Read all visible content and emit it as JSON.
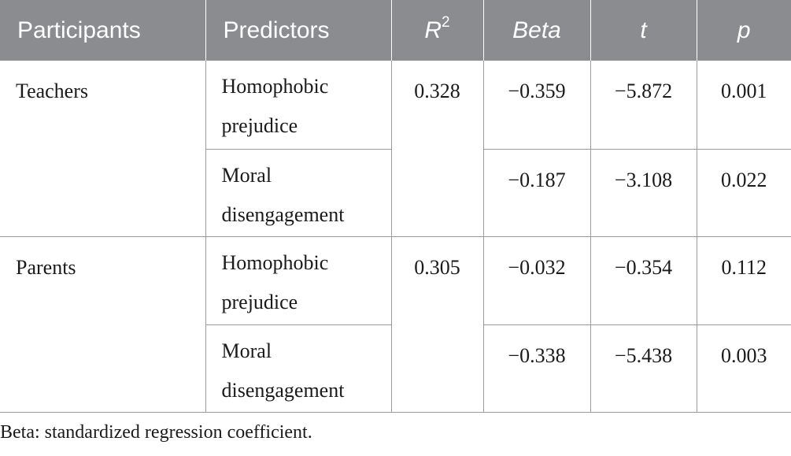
{
  "header": {
    "participants": "Participants",
    "predictors": "Predictors",
    "r2_base": "R",
    "r2_sup": "2",
    "beta": "Beta",
    "t": "t",
    "p": "p"
  },
  "groups": [
    {
      "participant": "Teachers",
      "r2": "0.328",
      "rows": [
        {
          "predictor_line1": "Homophobic",
          "predictor_line2": "prejudice",
          "beta": "−0.359",
          "t": "−5.872",
          "p": "0.001"
        },
        {
          "predictor_line1": "Moral",
          "predictor_line2": "disengagement",
          "beta": "−0.187",
          "t": "−3.108",
          "p": "0.022"
        }
      ]
    },
    {
      "participant": "Parents",
      "r2": "0.305",
      "rows": [
        {
          "predictor_line1": "Homophobic",
          "predictor_line2": "prejudice",
          "beta": "−0.032",
          "t": "−0.354",
          "p": "0.112"
        },
        {
          "predictor_line1": "Moral",
          "predictor_line2": "disengagement",
          "beta": "−0.338",
          "t": "−5.438",
          "p": "0.003"
        }
      ]
    }
  ],
  "footnote": "Beta: standardized regression coefficient."
}
